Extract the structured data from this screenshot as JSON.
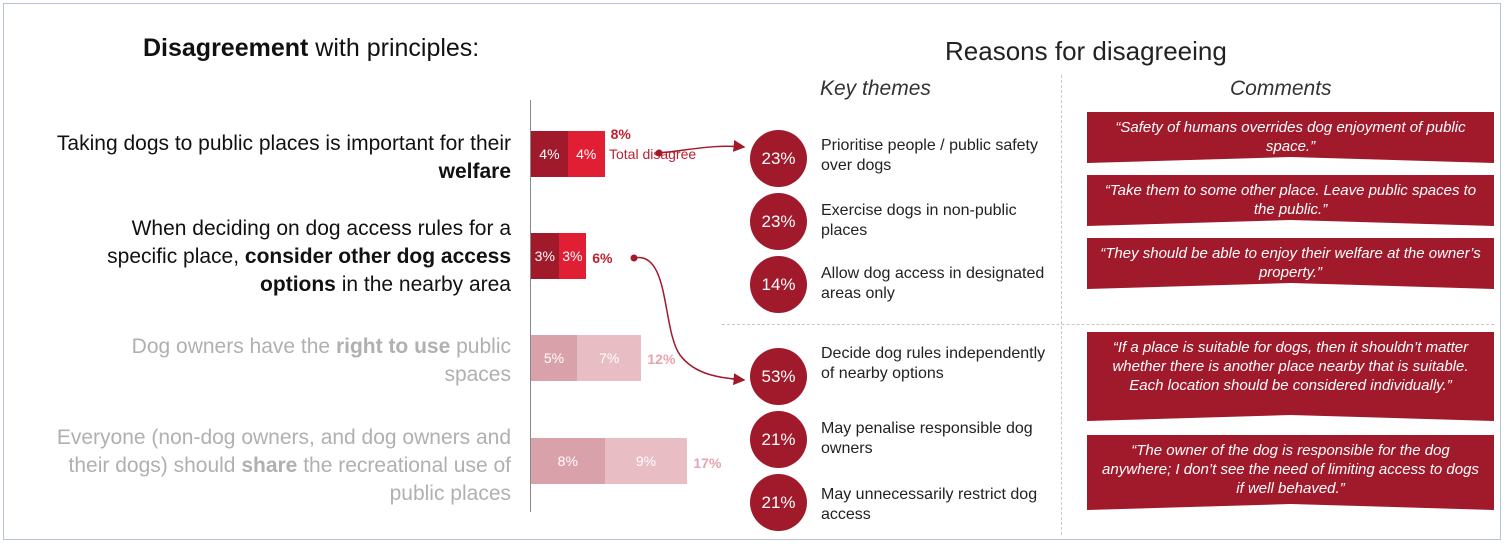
{
  "left_title": {
    "bold": "Disagreement",
    "rest": " with principles:"
  },
  "right_title": "Reasons for disagreeing",
  "key_themes_label": "Key themes",
  "comments_label": "Comments",
  "statements": [
    {
      "pre": "Taking dogs to public places is important for their ",
      "bold": "welfare",
      "post": ""
    },
    {
      "pre": "When deciding on dog access rules for a specific place, ",
      "bold": "consider other dog access options",
      "post": " in the nearby area"
    },
    {
      "pre": "Dog owners have the ",
      "bold": "right to use",
      "post": " public spaces"
    },
    {
      "pre": "Everyone (non-dog owners, and dog owners and their dogs) should ",
      "bold": "share",
      "post": " the recreational use of public places"
    }
  ],
  "chart_data": {
    "type": "bar",
    "orientation": "horizontal",
    "stacked": true,
    "categories": [
      "welfare",
      "consider other dog access options",
      "right to use",
      "share"
    ],
    "series": [
      {
        "values": [
          4,
          3,
          5,
          8
        ]
      },
      {
        "values": [
          4,
          3,
          7,
          9
        ]
      }
    ],
    "totals": [
      "8%",
      "6%",
      "12%",
      "17%"
    ],
    "segment_labels": [
      [
        "4%",
        "4%"
      ],
      [
        "3%",
        "3%"
      ],
      [
        "5%",
        "7%"
      ],
      [
        "8%",
        "9%"
      ]
    ],
    "total_note": "Total disagree",
    "colors": {
      "active_dark": "#a11a2b",
      "active_light": "#e01f35",
      "muted_dark": "#d9a1aa",
      "muted_light": "#e8bdc4",
      "muted_text": "#e8a3ae"
    }
  },
  "themes_group1": [
    {
      "pct": "23%",
      "text": "Prioritise people / public safety over dogs"
    },
    {
      "pct": "23%",
      "text": "Exercise dogs in non-public places"
    },
    {
      "pct": "14%",
      "text": "Allow dog access in designated areas only"
    }
  ],
  "themes_group2": [
    {
      "pct": "53%",
      "text": "Decide dog rules independently of nearby options"
    },
    {
      "pct": "21%",
      "text": "May penalise responsible dog owners"
    },
    {
      "pct": "21%",
      "text": "May unnecessarily restrict dog access"
    }
  ],
  "comments_group1": [
    "“Safety of humans overrides dog enjoyment of public space.”",
    "“Take them to some other place.  Leave public spaces to the public.”",
    "“They should be able to enjoy their welfare at the owner’s property.”"
  ],
  "comments_group2": [
    "“If a place is suitable for dogs, then it shouldn’t matter whether there is another place nearby that is suitable. Each location should be considered individually.”",
    "“The owner of the dog is responsible for the dog anywhere; I don’t see the need of limiting access to dogs if well behaved.”"
  ]
}
